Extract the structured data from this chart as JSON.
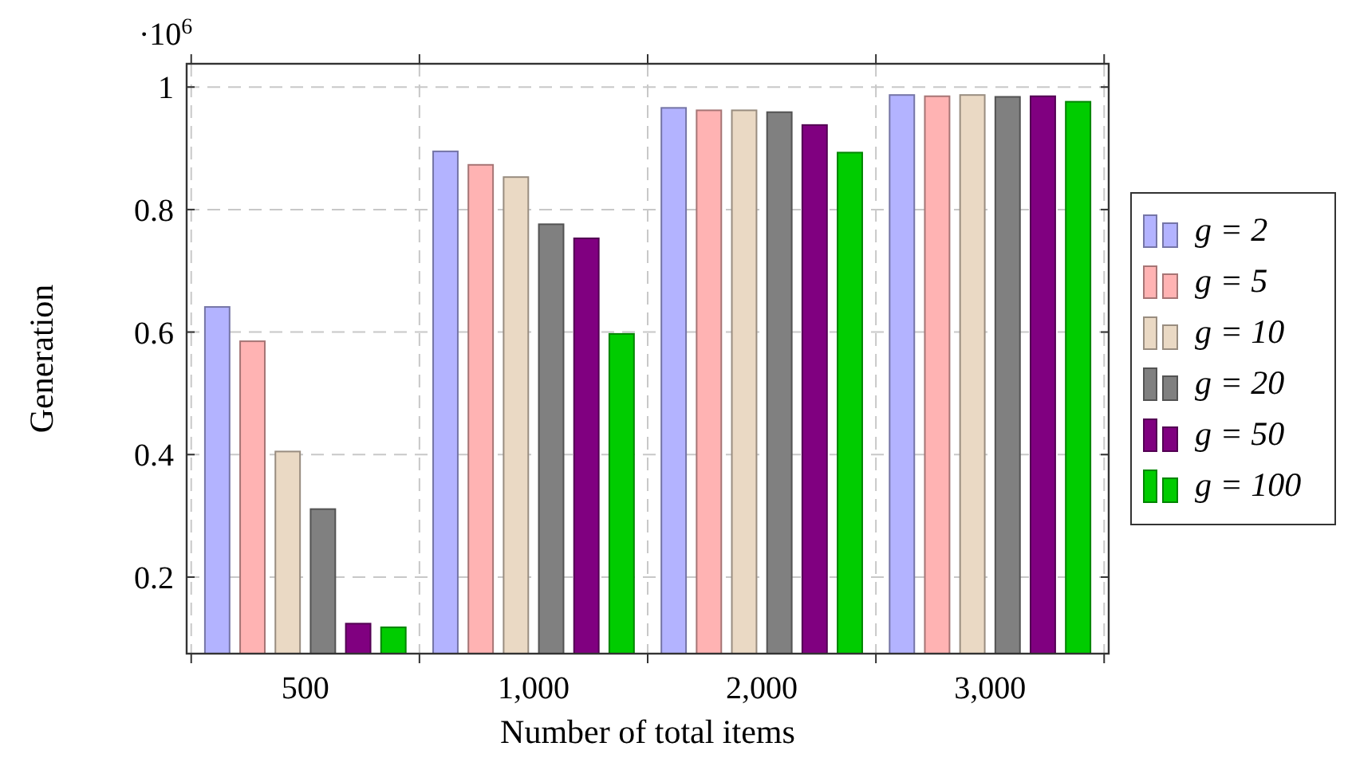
{
  "chart_data": {
    "type": "bar",
    "xlabel": "Number of total items",
    "ylabel": "Generation",
    "annotations": [
      "·10$^{6}$"
    ],
    "categories": [
      "500",
      "1,000",
      "2,000",
      "3,000"
    ],
    "series": [
      {
        "name": "g = 2",
        "color": "#b3b3ff",
        "values": [
          0.641,
          0.895,
          0.966,
          0.987
        ]
      },
      {
        "name": "g = 5",
        "color": "#ffb3b3",
        "values": [
          0.585,
          0.873,
          0.962,
          0.985
        ]
      },
      {
        "name": "g = 10",
        "color": "#ead9c4",
        "values": [
          0.405,
          0.853,
          0.962,
          0.987
        ]
      },
      {
        "name": "g = 20",
        "color": "#808080",
        "values": [
          0.311,
          0.776,
          0.959,
          0.984
        ]
      },
      {
        "name": "g = 50",
        "color": "#800080",
        "values": [
          0.124,
          0.753,
          0.938,
          0.985
        ]
      },
      {
        "name": "g = 100",
        "color": "#00cc00",
        "values": [
          0.118,
          0.597,
          0.893,
          0.976
        ]
      }
    ],
    "ylim": [
      0.075,
      1.038
    ],
    "yticks": [
      0.2,
      0.4,
      0.6,
      0.8,
      {
        "value": 1,
        "label": "1"
      }
    ],
    "grid": true,
    "legend": "right"
  }
}
